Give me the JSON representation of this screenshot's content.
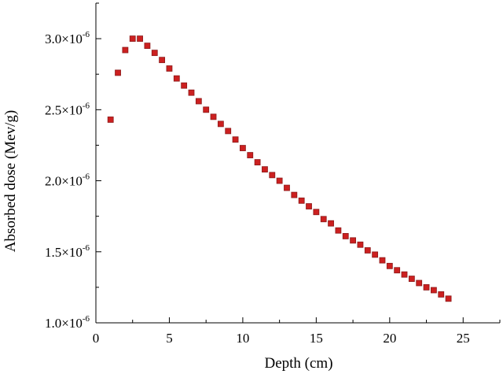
{
  "chart_data": {
    "type": "scatter",
    "title": "",
    "xlabel": "Depth (cm)",
    "ylabel": "Absorbed dose (Mev/g)",
    "xlim": [
      0,
      27.5
    ],
    "ylim": [
      1e-06,
      3.25e-06
    ],
    "xticks": [
      0,
      5,
      10,
      15,
      20,
      25
    ],
    "xtick_labels": [
      "0",
      "5",
      "10",
      "15",
      "20",
      "25"
    ],
    "yticks": [
      1e-06,
      1.5e-06,
      2e-06,
      2.5e-06,
      3e-06
    ],
    "ytick_labels": [
      {
        "mantissa": "1.0×10",
        "exponent": "-6"
      },
      {
        "mantissa": "1.5×10",
        "exponent": "-6"
      },
      {
        "mantissa": "2.0×10",
        "exponent": "-6"
      },
      {
        "mantissa": "2.5×10",
        "exponent": "-6"
      },
      {
        "mantissa": "3.0×10",
        "exponent": "-6"
      }
    ],
    "grid": false,
    "legend": "none",
    "marker_color": "#cc2020",
    "marker_edge": "#8b1a1a",
    "series": [
      {
        "x": [
          1.0,
          1.5,
          2.0,
          2.5,
          3.0,
          3.5,
          4.0,
          4.5,
          5.0,
          5.5,
          6.0,
          6.5,
          7.0,
          7.5,
          8.0,
          8.5,
          9.0,
          9.5,
          10.0,
          10.5,
          11.0,
          11.5,
          12.0,
          12.5,
          13.0,
          13.5,
          14.0,
          14.5,
          15.0,
          15.5,
          16.0,
          16.5,
          17.0,
          17.5,
          18.0,
          18.5,
          19.0,
          19.5,
          20.0,
          20.5,
          21.0,
          21.5,
          22.0,
          22.5,
          23.0,
          23.5,
          24.0
        ],
        "y": [
          2.43e-06,
          2.76e-06,
          2.92e-06,
          3e-06,
          3e-06,
          2.95e-06,
          2.9e-06,
          2.85e-06,
          2.79e-06,
          2.72e-06,
          2.67e-06,
          2.62e-06,
          2.56e-06,
          2.5e-06,
          2.45e-06,
          2.4e-06,
          2.35e-06,
          2.29e-06,
          2.23e-06,
          2.18e-06,
          2.13e-06,
          2.08e-06,
          2.04e-06,
          2e-06,
          1.95e-06,
          1.9e-06,
          1.86e-06,
          1.82e-06,
          1.78e-06,
          1.73e-06,
          1.7e-06,
          1.65e-06,
          1.61e-06,
          1.58e-06,
          1.55e-06,
          1.51e-06,
          1.48e-06,
          1.44e-06,
          1.4e-06,
          1.37e-06,
          1.34e-06,
          1.31e-06,
          1.28e-06,
          1.25e-06,
          1.23e-06,
          1.2e-06,
          1.17e-06
        ]
      }
    ]
  }
}
